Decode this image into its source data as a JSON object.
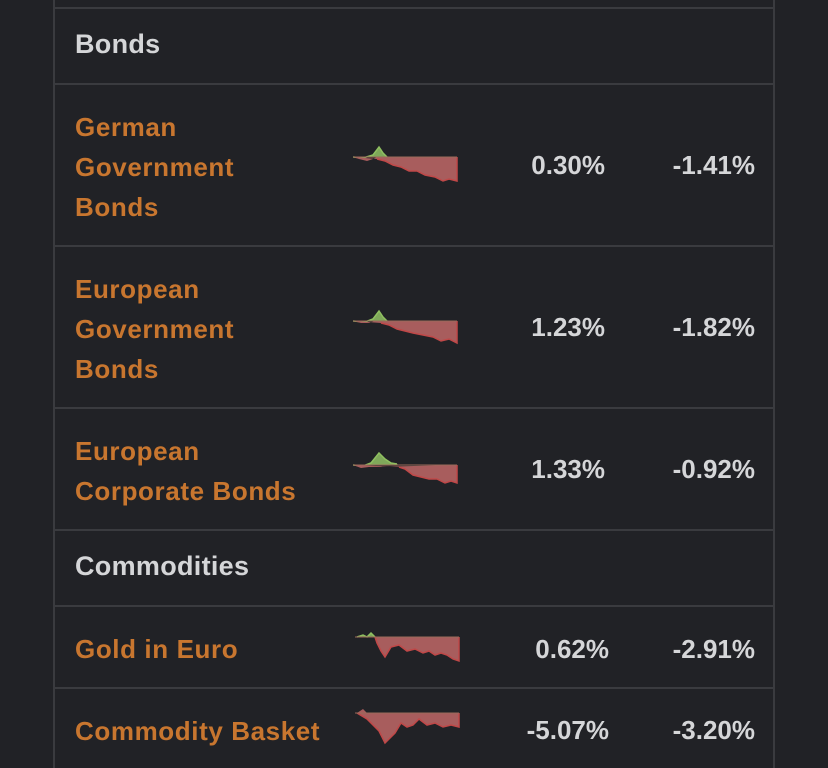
{
  "sections": [
    {
      "label": "Bonds",
      "items": [
        {
          "name_lines": [
            "German",
            "Government",
            "Bonds"
          ],
          "col1": "0.30%",
          "col2": "-1.41%"
        },
        {
          "name_lines": [
            "European",
            "Government",
            "Bonds"
          ],
          "col1": "1.23%",
          "col2": "-1.82%"
        },
        {
          "name_lines": [
            "European",
            "Corporate Bonds"
          ],
          "col1": "1.33%",
          "col2": "-0.92%"
        }
      ]
    },
    {
      "label": "Commodities",
      "items": [
        {
          "name_lines": [
            "Gold in Euro"
          ],
          "col1": "0.62%",
          "col2": "-2.91%"
        },
        {
          "name_lines": [
            "Commodity Basket"
          ],
          "col1": "-5.07%",
          "col2": "-3.20%"
        }
      ]
    }
  ],
  "colors": {
    "background": "#212226",
    "border": "#3a3b3f",
    "link": "#c8762f",
    "text": "#d5d6d8",
    "spark_positive": "#7fa85a",
    "spark_negative": "#b05a5a"
  }
}
